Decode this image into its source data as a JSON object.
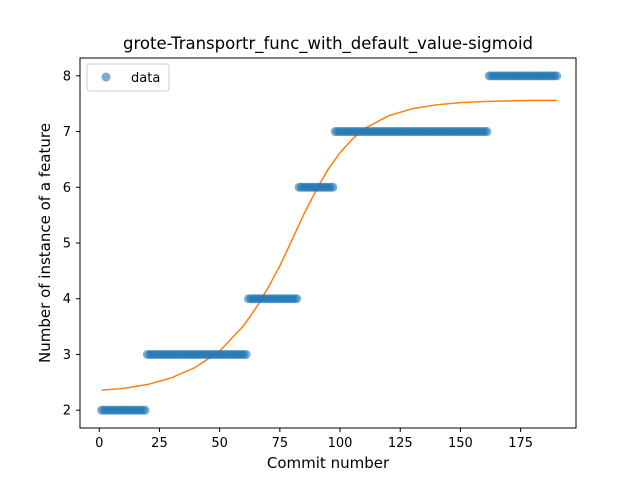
{
  "chart_data": {
    "type": "scatter",
    "title": "grote-Transportr_func_with_default_value-sigmoid",
    "xlabel": "Commit number",
    "ylabel": "Number of instance of a feature",
    "xlim": [
      -8,
      198
    ],
    "ylim": [
      1.68,
      8.32
    ],
    "xticks": [
      0,
      25,
      50,
      75,
      100,
      125,
      150,
      175
    ],
    "yticks": [
      2,
      3,
      4,
      5,
      6,
      7,
      8
    ],
    "grid": false,
    "legend": {
      "position": "top-left",
      "entries": [
        "data"
      ]
    },
    "colors": {
      "data": "#1f77b4",
      "fit": "#ff7f0e"
    },
    "series": [
      {
        "name": "data",
        "kind": "points",
        "segments": [
          {
            "x_from": 1,
            "x_to": 19,
            "y": 2
          },
          {
            "x_from": 20,
            "x_to": 61,
            "y": 3
          },
          {
            "x_from": 62,
            "x_to": 82,
            "y": 4
          },
          {
            "x_from": 83,
            "x_to": 97,
            "y": 6
          },
          {
            "x_from": 98,
            "x_to": 161,
            "y": 7
          },
          {
            "x_from": 162,
            "x_to": 190,
            "y": 8
          }
        ]
      },
      {
        "kind": "sigmoid-fit",
        "x": [
          1,
          10,
          20,
          30,
          40,
          50,
          60,
          65,
          70,
          75,
          80,
          85,
          90,
          95,
          100,
          105,
          110,
          120,
          130,
          140,
          150,
          160,
          170,
          180,
          190
        ],
        "y": [
          2.36,
          2.39,
          2.46,
          2.58,
          2.77,
          3.06,
          3.52,
          3.83,
          4.19,
          4.59,
          5.05,
          5.52,
          5.94,
          6.32,
          6.62,
          6.86,
          7.05,
          7.28,
          7.41,
          7.48,
          7.52,
          7.54,
          7.55,
          7.56,
          7.56
        ]
      }
    ]
  }
}
